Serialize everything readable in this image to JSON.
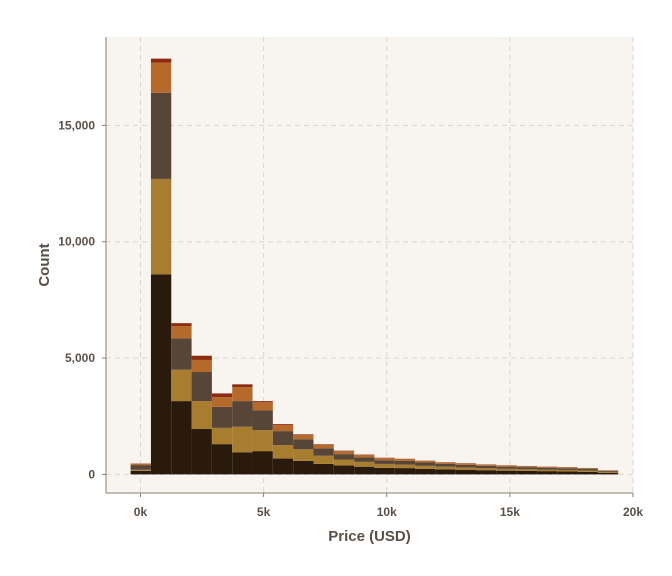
{
  "chart_data": {
    "type": "bar",
    "subtype": "stacked-histogram",
    "title": "",
    "xlabel": "Price (USD)",
    "ylabel": "Count",
    "xlim": [
      -1400,
      20000
    ],
    "ylim": [
      -800,
      18800
    ],
    "x_ticks": [
      {
        "value": 0,
        "label": "0k"
      },
      {
        "value": 5000,
        "label": "5k"
      },
      {
        "value": 10000,
        "label": "10k"
      },
      {
        "value": 15000,
        "label": "15k"
      },
      {
        "value": 20000,
        "label": "20k"
      }
    ],
    "y_ticks": [
      {
        "value": 0,
        "label": "0"
      },
      {
        "value": 5000,
        "label": "5,000"
      },
      {
        "value": 10000,
        "label": "10,000"
      },
      {
        "value": 15000,
        "label": "15,000"
      }
    ],
    "grid": true,
    "legend": "none",
    "bin_edges": [
      -400,
      425,
      1250,
      2075,
      2900,
      3725,
      4550,
      5375,
      6200,
      7025,
      7850,
      8675,
      9500,
      10325,
      11150,
      11975,
      12800,
      13625,
      14450,
      15275,
      16100,
      16925,
      17750,
      18575,
      19400
    ],
    "series": [
      {
        "color": "#2a1a0c",
        "values": [
          150,
          8600,
          3150,
          1950,
          1300,
          950,
          1000,
          680,
          580,
          450,
          380,
          330,
          280,
          270,
          240,
          220,
          200,
          180,
          160,
          150,
          140,
          130,
          110,
          70
        ]
      },
      {
        "color": "#a87d30",
        "values": [
          50,
          4100,
          1350,
          1200,
          700,
          1100,
          900,
          580,
          500,
          350,
          260,
          210,
          170,
          150,
          130,
          110,
          100,
          90,
          80,
          70,
          65,
          60,
          50,
          40
        ]
      },
      {
        "color": "#574537",
        "values": [
          200,
          3700,
          1350,
          1250,
          900,
          1100,
          850,
          600,
          430,
          320,
          230,
          190,
          160,
          160,
          140,
          120,
          110,
          100,
          90,
          90,
          80,
          70,
          70,
          40
        ]
      },
      {
        "color": "#b5692b",
        "values": [
          60,
          1300,
          520,
          520,
          420,
          600,
          350,
          260,
          180,
          150,
          130,
          100,
          90,
          80,
          70,
          60,
          60,
          50,
          50,
          40,
          40,
          40,
          30,
          20
        ]
      },
      {
        "color": "#8e2a10",
        "values": [
          10,
          170,
          130,
          180,
          160,
          120,
          50,
          40,
          30,
          25,
          20,
          20,
          15,
          10,
          10,
          10,
          10,
          10,
          10,
          10,
          10,
          10,
          10,
          5
        ]
      }
    ]
  },
  "colors": {
    "plot_background": "#f8f4ef",
    "grid": "#ddd6cc",
    "axis": "#8a7d70"
  }
}
